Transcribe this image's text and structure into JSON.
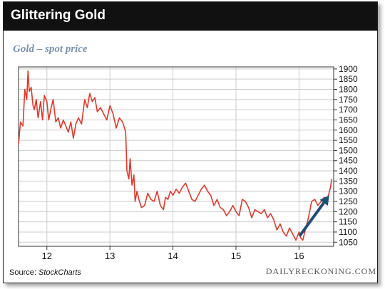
{
  "header": {
    "title": "Glittering Gold"
  },
  "footer": {
    "source_label": "Source:",
    "source_name": "StockCharts",
    "brand": "DAILYRECKONING.COM"
  },
  "colors": {
    "line": "#e0392b",
    "arrow": "#1f4e79",
    "subtitle": "#7a93ad",
    "grid": "#cccccc"
  },
  "chart_data": {
    "type": "line",
    "title": "Gold – spot price",
    "xlabel": "",
    "ylabel": "",
    "xlim": [
      11.55,
      16.55
    ],
    "ylim": [
      1030,
      1910
    ],
    "x_ticks": [
      12,
      13,
      14,
      15,
      16
    ],
    "x_tick_labels": [
      "12",
      "13",
      "14",
      "15",
      "16"
    ],
    "y_ticks": [
      1050,
      1100,
      1150,
      1200,
      1250,
      1300,
      1350,
      1400,
      1450,
      1500,
      1550,
      1600,
      1650,
      1700,
      1750,
      1800,
      1850,
      1900
    ],
    "y_axis_side": "right",
    "grid": true,
    "series": [
      {
        "x": [
          11.55,
          11.58,
          11.62,
          11.65,
          11.68,
          11.7,
          11.72,
          11.75,
          11.78,
          11.8,
          11.83,
          11.86,
          11.9,
          11.93,
          11.96,
          12.0,
          12.03,
          12.06,
          12.1,
          12.14,
          12.18,
          12.22,
          12.26,
          12.3,
          12.34,
          12.38,
          12.42,
          12.46,
          12.5,
          12.55,
          12.6,
          12.64,
          12.68,
          12.72,
          12.76,
          12.8,
          12.85,
          12.9,
          12.95,
          13.0,
          13.05,
          13.1,
          13.15,
          13.2,
          13.25,
          13.27,
          13.3,
          13.32,
          13.35,
          13.38,
          13.4,
          13.43,
          13.46,
          13.5,
          13.55,
          13.6,
          13.65,
          13.7,
          13.75,
          13.8,
          13.85,
          13.88,
          13.92,
          13.96,
          14.0,
          14.05,
          14.1,
          14.15,
          14.2,
          14.25,
          14.3,
          14.35,
          14.4,
          14.45,
          14.5,
          14.55,
          14.6,
          14.65,
          14.7,
          14.75,
          14.8,
          14.85,
          14.9,
          14.95,
          15.0,
          15.05,
          15.1,
          15.15,
          15.2,
          15.25,
          15.3,
          15.35,
          15.4,
          15.45,
          15.5,
          15.55,
          15.6,
          15.65,
          15.7,
          15.75,
          15.8,
          15.85,
          15.9,
          15.95,
          16.0,
          16.03,
          16.06,
          16.1,
          16.15,
          16.2,
          16.25,
          16.3,
          16.35,
          16.4,
          16.45,
          16.5,
          16.52
        ],
        "y": [
          1530,
          1640,
          1620,
          1800,
          1750,
          1890,
          1790,
          1810,
          1720,
          1700,
          1750,
          1660,
          1740,
          1650,
          1770,
          1740,
          1650,
          1700,
          1750,
          1640,
          1660,
          1610,
          1650,
          1620,
          1590,
          1640,
          1560,
          1630,
          1660,
          1630,
          1750,
          1710,
          1780,
          1740,
          1760,
          1690,
          1710,
          1680,
          1650,
          1720,
          1680,
          1610,
          1660,
          1640,
          1590,
          1400,
          1360,
          1460,
          1330,
          1380,
          1250,
          1300,
          1260,
          1220,
          1230,
          1290,
          1260,
          1250,
          1300,
          1230,
          1210,
          1270,
          1260,
          1300,
          1280,
          1310,
          1290,
          1320,
          1340,
          1300,
          1260,
          1250,
          1280,
          1310,
          1330,
          1300,
          1280,
          1230,
          1260,
          1220,
          1210,
          1180,
          1200,
          1230,
          1200,
          1180,
          1260,
          1250,
          1220,
          1170,
          1210,
          1200,
          1190,
          1210,
          1170,
          1190,
          1160,
          1110,
          1140,
          1100,
          1080,
          1120,
          1090,
          1060,
          1100,
          1070,
          1060,
          1110,
          1170,
          1250,
          1260,
          1230,
          1250,
          1270,
          1260,
          1320,
          1360
        ]
      }
    ],
    "annotations": [
      {
        "type": "arrow",
        "from": [
          16.02,
          1085
        ],
        "to": [
          16.48,
          1280
        ]
      }
    ]
  }
}
